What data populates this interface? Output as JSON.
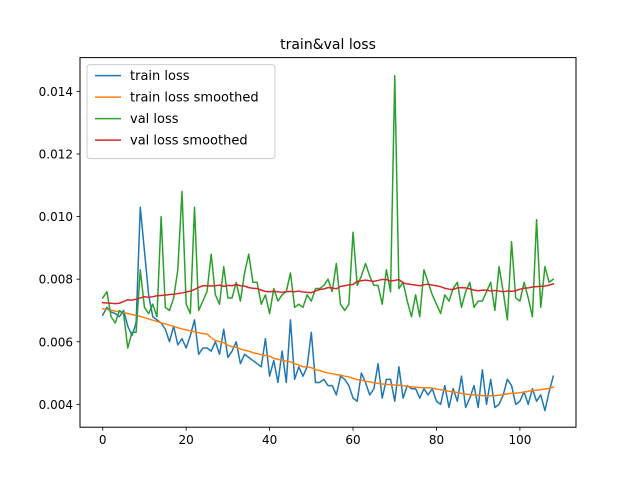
{
  "chart_data": {
    "type": "line",
    "title": "train&val loss",
    "xlabel": "",
    "ylabel": "",
    "xlim": [
      -5.45,
      113.45
    ],
    "ylim": [
      0.00327,
      0.01508
    ],
    "x_ticks": [
      0,
      20,
      40,
      60,
      80,
      100
    ],
    "y_ticks": [
      0.004,
      0.006,
      0.008,
      0.01,
      0.012,
      0.014
    ],
    "y_tick_labels": [
      "0.004",
      "0.006",
      "0.008",
      "0.010",
      "0.012",
      "0.014"
    ],
    "grid": false,
    "legend_position": "top-left",
    "colors": {
      "train_loss": "#1f77b4",
      "train_loss_smoothed": "#ff7f0e",
      "val_loss": "#2ca02c",
      "val_loss_smoothed": "#d62728"
    },
    "x": [
      0,
      1,
      2,
      3,
      4,
      5,
      6,
      7,
      8,
      9,
      10,
      11,
      12,
      13,
      14,
      15,
      16,
      17,
      18,
      19,
      20,
      21,
      22,
      23,
      24,
      25,
      26,
      27,
      28,
      29,
      30,
      31,
      32,
      33,
      34,
      35,
      36,
      37,
      38,
      39,
      40,
      41,
      42,
      43,
      44,
      45,
      46,
      47,
      48,
      49,
      50,
      51,
      52,
      53,
      54,
      55,
      56,
      57,
      58,
      59,
      60,
      61,
      62,
      63,
      64,
      65,
      66,
      67,
      68,
      69,
      70,
      71,
      72,
      73,
      74,
      75,
      76,
      77,
      78,
      79,
      80,
      81,
      82,
      83,
      84,
      85,
      86,
      87,
      88,
      89,
      90,
      91,
      92,
      93,
      94,
      95,
      96,
      97,
      98,
      99,
      100,
      101,
      102,
      103,
      104,
      105,
      106,
      107,
      108
    ],
    "series": [
      {
        "name": "train loss",
        "color": "#1f77b4",
        "values": [
          0.00685,
          0.0071,
          0.00695,
          0.0069,
          0.0068,
          0.007,
          0.0065,
          0.0062,
          0.0066,
          0.0103,
          0.0089,
          0.0075,
          0.0068,
          0.0067,
          0.0066,
          0.0064,
          0.006,
          0.0065,
          0.0059,
          0.0061,
          0.0058,
          0.0062,
          0.0067,
          0.0056,
          0.0058,
          0.0058,
          0.0057,
          0.006,
          0.0056,
          0.0064,
          0.0055,
          0.0057,
          0.006,
          0.0053,
          0.0056,
          0.0055,
          0.0054,
          0.0053,
          0.0052,
          0.0061,
          0.0049,
          0.0054,
          0.0047,
          0.0057,
          0.0047,
          0.0067,
          0.0048,
          0.0052,
          0.0049,
          0.0052,
          0.0063,
          0.0047,
          0.0047,
          0.0048,
          0.0046,
          0.0046,
          0.0043,
          0.0049,
          0.0048,
          0.0046,
          0.0042,
          0.0041,
          0.005,
          0.0047,
          0.0043,
          0.0045,
          0.0053,
          0.0042,
          0.0048,
          0.0048,
          0.0041,
          0.0052,
          0.0042,
          0.0046,
          0.0045,
          0.0045,
          0.0042,
          0.0045,
          0.0043,
          0.0045,
          0.0041,
          0.004,
          0.0046,
          0.0039,
          0.0045,
          0.0041,
          0.0049,
          0.0039,
          0.0042,
          0.0046,
          0.0039,
          0.0051,
          0.004,
          0.0048,
          0.0039,
          0.004,
          0.0043,
          0.0048,
          0.0046,
          0.004,
          0.0041,
          0.0044,
          0.004,
          0.0045,
          0.0041,
          0.0043,
          0.0038,
          0.0044,
          0.0049
        ]
      },
      {
        "name": "train loss smoothed",
        "color": "#ff7f0e",
        "values": [
          0.00705,
          0.00703,
          0.00701,
          0.00698,
          0.00696,
          0.00693,
          0.0069,
          0.00687,
          0.00684,
          0.00681,
          0.00677,
          0.00673,
          0.00669,
          0.00665,
          0.00661,
          0.00657,
          0.00653,
          0.00649,
          0.00645,
          0.00641,
          0.00638,
          0.00635,
          0.00632,
          0.00629,
          0.00626,
          0.00625,
          0.00613,
          0.00604,
          0.006,
          0.00597,
          0.00589,
          0.00584,
          0.00582,
          0.00577,
          0.00573,
          0.0057,
          0.00565,
          0.00562,
          0.00559,
          0.00556,
          0.00554,
          0.00547,
          0.00544,
          0.00541,
          0.00538,
          0.00536,
          0.0053,
          0.00526,
          0.0052,
          0.0052,
          0.00517,
          0.00511,
          0.00508,
          0.00504,
          0.005,
          0.00498,
          0.00495,
          0.00494,
          0.0049,
          0.00488,
          0.00483,
          0.00479,
          0.00477,
          0.00474,
          0.00472,
          0.00469,
          0.00467,
          0.00465,
          0.00464,
          0.00463,
          0.00462,
          0.00461,
          0.0046,
          0.00457,
          0.00456,
          0.00455,
          0.00454,
          0.00453,
          0.00453,
          0.00452,
          0.00449,
          0.00447,
          0.00444,
          0.00442,
          0.0044,
          0.00438,
          0.00435,
          0.00433,
          0.00431,
          0.0043,
          0.00429,
          0.00428,
          0.00428,
          0.00427,
          0.00428,
          0.00429,
          0.00431,
          0.00434,
          0.00435,
          0.00436,
          0.00437,
          0.00439,
          0.00442,
          0.00444,
          0.00445,
          0.00447,
          0.00449,
          0.00451,
          0.00455
        ]
      },
      {
        "name": "val loss",
        "color": "#2ca02c",
        "values": [
          0.0074,
          0.0076,
          0.0068,
          0.0066,
          0.007,
          0.0069,
          0.0058,
          0.0063,
          0.0063,
          0.0083,
          0.0071,
          0.0069,
          0.0072,
          0.0068,
          0.01,
          0.0071,
          0.007,
          0.0074,
          0.0083,
          0.0108,
          0.0072,
          0.0069,
          0.0103,
          0.007,
          0.0073,
          0.0076,
          0.0088,
          0.0075,
          0.0072,
          0.0084,
          0.0074,
          0.0074,
          0.0079,
          0.0073,
          0.0082,
          0.0088,
          0.0079,
          0.0079,
          0.0072,
          0.0075,
          0.0069,
          0.0077,
          0.0073,
          0.0075,
          0.0076,
          0.0082,
          0.0071,
          0.0072,
          0.0071,
          0.0075,
          0.0073,
          0.0077,
          0.0077,
          0.0078,
          0.008,
          0.0076,
          0.0085,
          0.0072,
          0.007,
          0.0072,
          0.0095,
          0.0078,
          0.0081,
          0.0085,
          0.0081,
          0.0078,
          0.0078,
          0.0072,
          0.0083,
          0.0076,
          0.0145,
          0.0077,
          0.0079,
          0.0073,
          0.0068,
          0.0075,
          0.0068,
          0.0083,
          0.0079,
          0.0075,
          0.0072,
          0.0069,
          0.0075,
          0.0073,
          0.0077,
          0.0079,
          0.0071,
          0.0076,
          0.0079,
          0.0071,
          0.0073,
          0.0073,
          0.0076,
          0.0079,
          0.007,
          0.0084,
          0.0076,
          0.0067,
          0.0092,
          0.0074,
          0.0073,
          0.0079,
          0.0074,
          0.0068,
          0.0099,
          0.0071,
          0.0084,
          0.0079,
          0.008
        ]
      },
      {
        "name": "val loss smoothed",
        "color": "#d62728",
        "values": [
          0.00725,
          0.00724,
          0.00723,
          0.00722,
          0.00723,
          0.00729,
          0.00734,
          0.00733,
          0.00736,
          0.0074,
          0.00744,
          0.00742,
          0.00744,
          0.00747,
          0.00748,
          0.00749,
          0.00751,
          0.00752,
          0.00754,
          0.00756,
          0.00759,
          0.00762,
          0.00767,
          0.00774,
          0.00779,
          0.00779,
          0.00778,
          0.00779,
          0.00781,
          0.00777,
          0.0078,
          0.00779,
          0.00783,
          0.00779,
          0.00778,
          0.00773,
          0.00771,
          0.0077,
          0.00765,
          0.00761,
          0.0076,
          0.00761,
          0.0076,
          0.00758,
          0.0076,
          0.00761,
          0.0076,
          0.00762,
          0.00759,
          0.00758,
          0.00757,
          0.00762,
          0.00767,
          0.00769,
          0.00773,
          0.00772,
          0.00769,
          0.00777,
          0.00779,
          0.00782,
          0.00783,
          0.00793,
          0.00795,
          0.00797,
          0.00795,
          0.00793,
          0.00796,
          0.00799,
          0.00799,
          0.00794,
          0.00796,
          0.00799,
          0.00788,
          0.00785,
          0.00783,
          0.00781,
          0.00779,
          0.00782,
          0.00784,
          0.00781,
          0.00779,
          0.00776,
          0.00771,
          0.00768,
          0.00767,
          0.00772,
          0.00773,
          0.00772,
          0.00769,
          0.00765,
          0.00763,
          0.00765,
          0.00765,
          0.00762,
          0.00764,
          0.00762,
          0.0076,
          0.00762,
          0.00761,
          0.00763,
          0.00768,
          0.00771,
          0.00772,
          0.00775,
          0.00776,
          0.00777,
          0.00778,
          0.00781,
          0.00785
        ]
      }
    ]
  }
}
